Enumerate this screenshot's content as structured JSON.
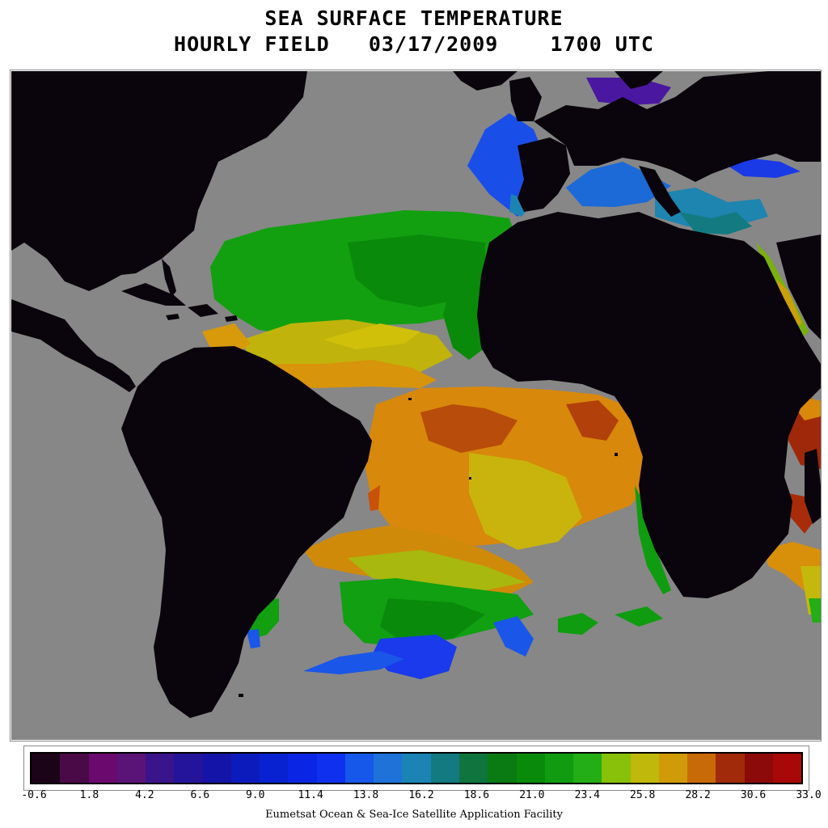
{
  "header": {
    "title": "SEA SURFACE TEMPERATURE",
    "subtitle": "HOURLY FIELD   03/17/2009    1700 UTC"
  },
  "map": {
    "land_color": "#0a040c",
    "no_data_color": "#878787"
  },
  "colorbar": {
    "colors": [
      "#1c0418",
      "#4a0a48",
      "#6a0a6e",
      "#5a1478",
      "#3a148a",
      "#24149a",
      "#1414a8",
      "#0c1cbc",
      "#0822d2",
      "#0a26e4",
      "#1030f0",
      "#1658ea",
      "#1e72d8",
      "#1c84b4",
      "#147a82",
      "#10743e",
      "#0a7a12",
      "#0a8a0a",
      "#109c10",
      "#22ae14",
      "#88c00a",
      "#c0b80a",
      "#d09a08",
      "#c86a08",
      "#a02a0a",
      "#8c0a0a",
      "#a80808"
    ],
    "tick_labels": [
      "-0.6",
      "1.8",
      "4.2",
      "6.6",
      "9.0",
      "11.4",
      "13.8",
      "16.2",
      "18.6",
      "21.0",
      "23.4",
      "25.8",
      "28.2",
      "30.6",
      "33.0"
    ]
  },
  "footer": {
    "credit": "Eumetsat Ocean & Sea-Ice Satellite Application Facility"
  }
}
